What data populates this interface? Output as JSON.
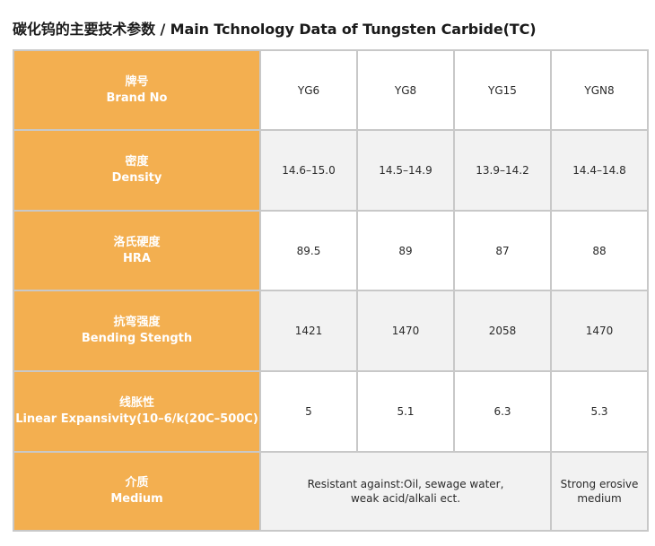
{
  "title": "碳化钨的主要技术参数 / Main Tchnology Data of Tungsten Carbide(TC)",
  "rows": [
    {
      "zh": "牌号",
      "en": "Brand No",
      "values": [
        "YG6",
        "YG8",
        "YG15",
        "YGN8"
      ]
    },
    {
      "zh": "密度",
      "en": "Density",
      "values": [
        "14.6–15.0",
        "14.5–14.9",
        "13.9–14.2",
        "14.4–14.8"
      ]
    },
    {
      "zh": "洛氏硬度",
      "en": "HRA",
      "values": [
        "89.5",
        "89",
        "87",
        "88"
      ]
    },
    {
      "zh": "抗弯强度",
      "en": "Bending Stength",
      "values": [
        "1421",
        "1470",
        "2058",
        "1470"
      ]
    },
    {
      "zh": "线胀性",
      "en": "Linear Expansivity(10–6/k(20C–500C)",
      "values": [
        "5",
        "5.1",
        "6.3",
        "5.3"
      ]
    }
  ],
  "medium": {
    "zh": "介质",
    "en": "Medium",
    "yg_line1": "Resistant against:Oil, sewage water,",
    "yg_line2": "weak acid/alkali ect.",
    "ygn_line1": "Strong erosive",
    "ygn_line2": "medium"
  }
}
